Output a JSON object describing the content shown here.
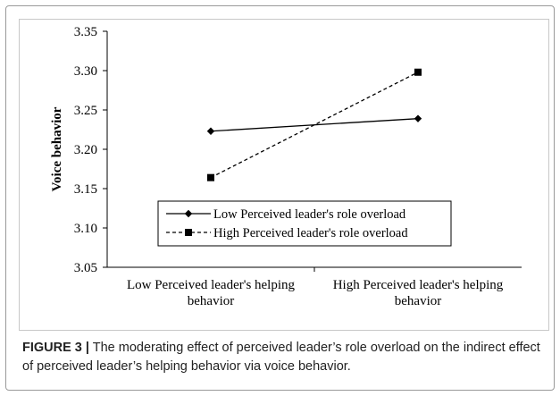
{
  "chart_data": {
    "type": "line",
    "categories": [
      "Low Perceived leader's helping behavior",
      "High Perceived leader's helping behavior"
    ],
    "category_lines": [
      [
        "Low Perceived leader's helping",
        "behavior"
      ],
      [
        "High Perceived leader's helping",
        "behavior"
      ]
    ],
    "ylabel": "Voice behavior",
    "ylim": [
      3.05,
      3.35
    ],
    "yticks": [
      "3.35",
      "3.30",
      "3.25",
      "3.20",
      "3.15",
      "3.10",
      "3.05"
    ],
    "grid": false,
    "legend_position": "lower-center",
    "series": [
      {
        "name": "Low Perceived leader's role overload",
        "values": [
          3.223,
          3.239
        ],
        "line_style": "solid",
        "marker": "diamond",
        "color": "#000000"
      },
      {
        "name": "High Perceived leader's role overload",
        "values": [
          3.164,
          3.298
        ],
        "line_style": "dashed",
        "marker": "square",
        "color": "#000000"
      }
    ]
  },
  "caption": {
    "label": "FIGURE 3 |",
    "text": " The moderating effect of perceived leader’s role overload on the indirect effect of perceived leader’s helping behavior via voice behavior."
  }
}
